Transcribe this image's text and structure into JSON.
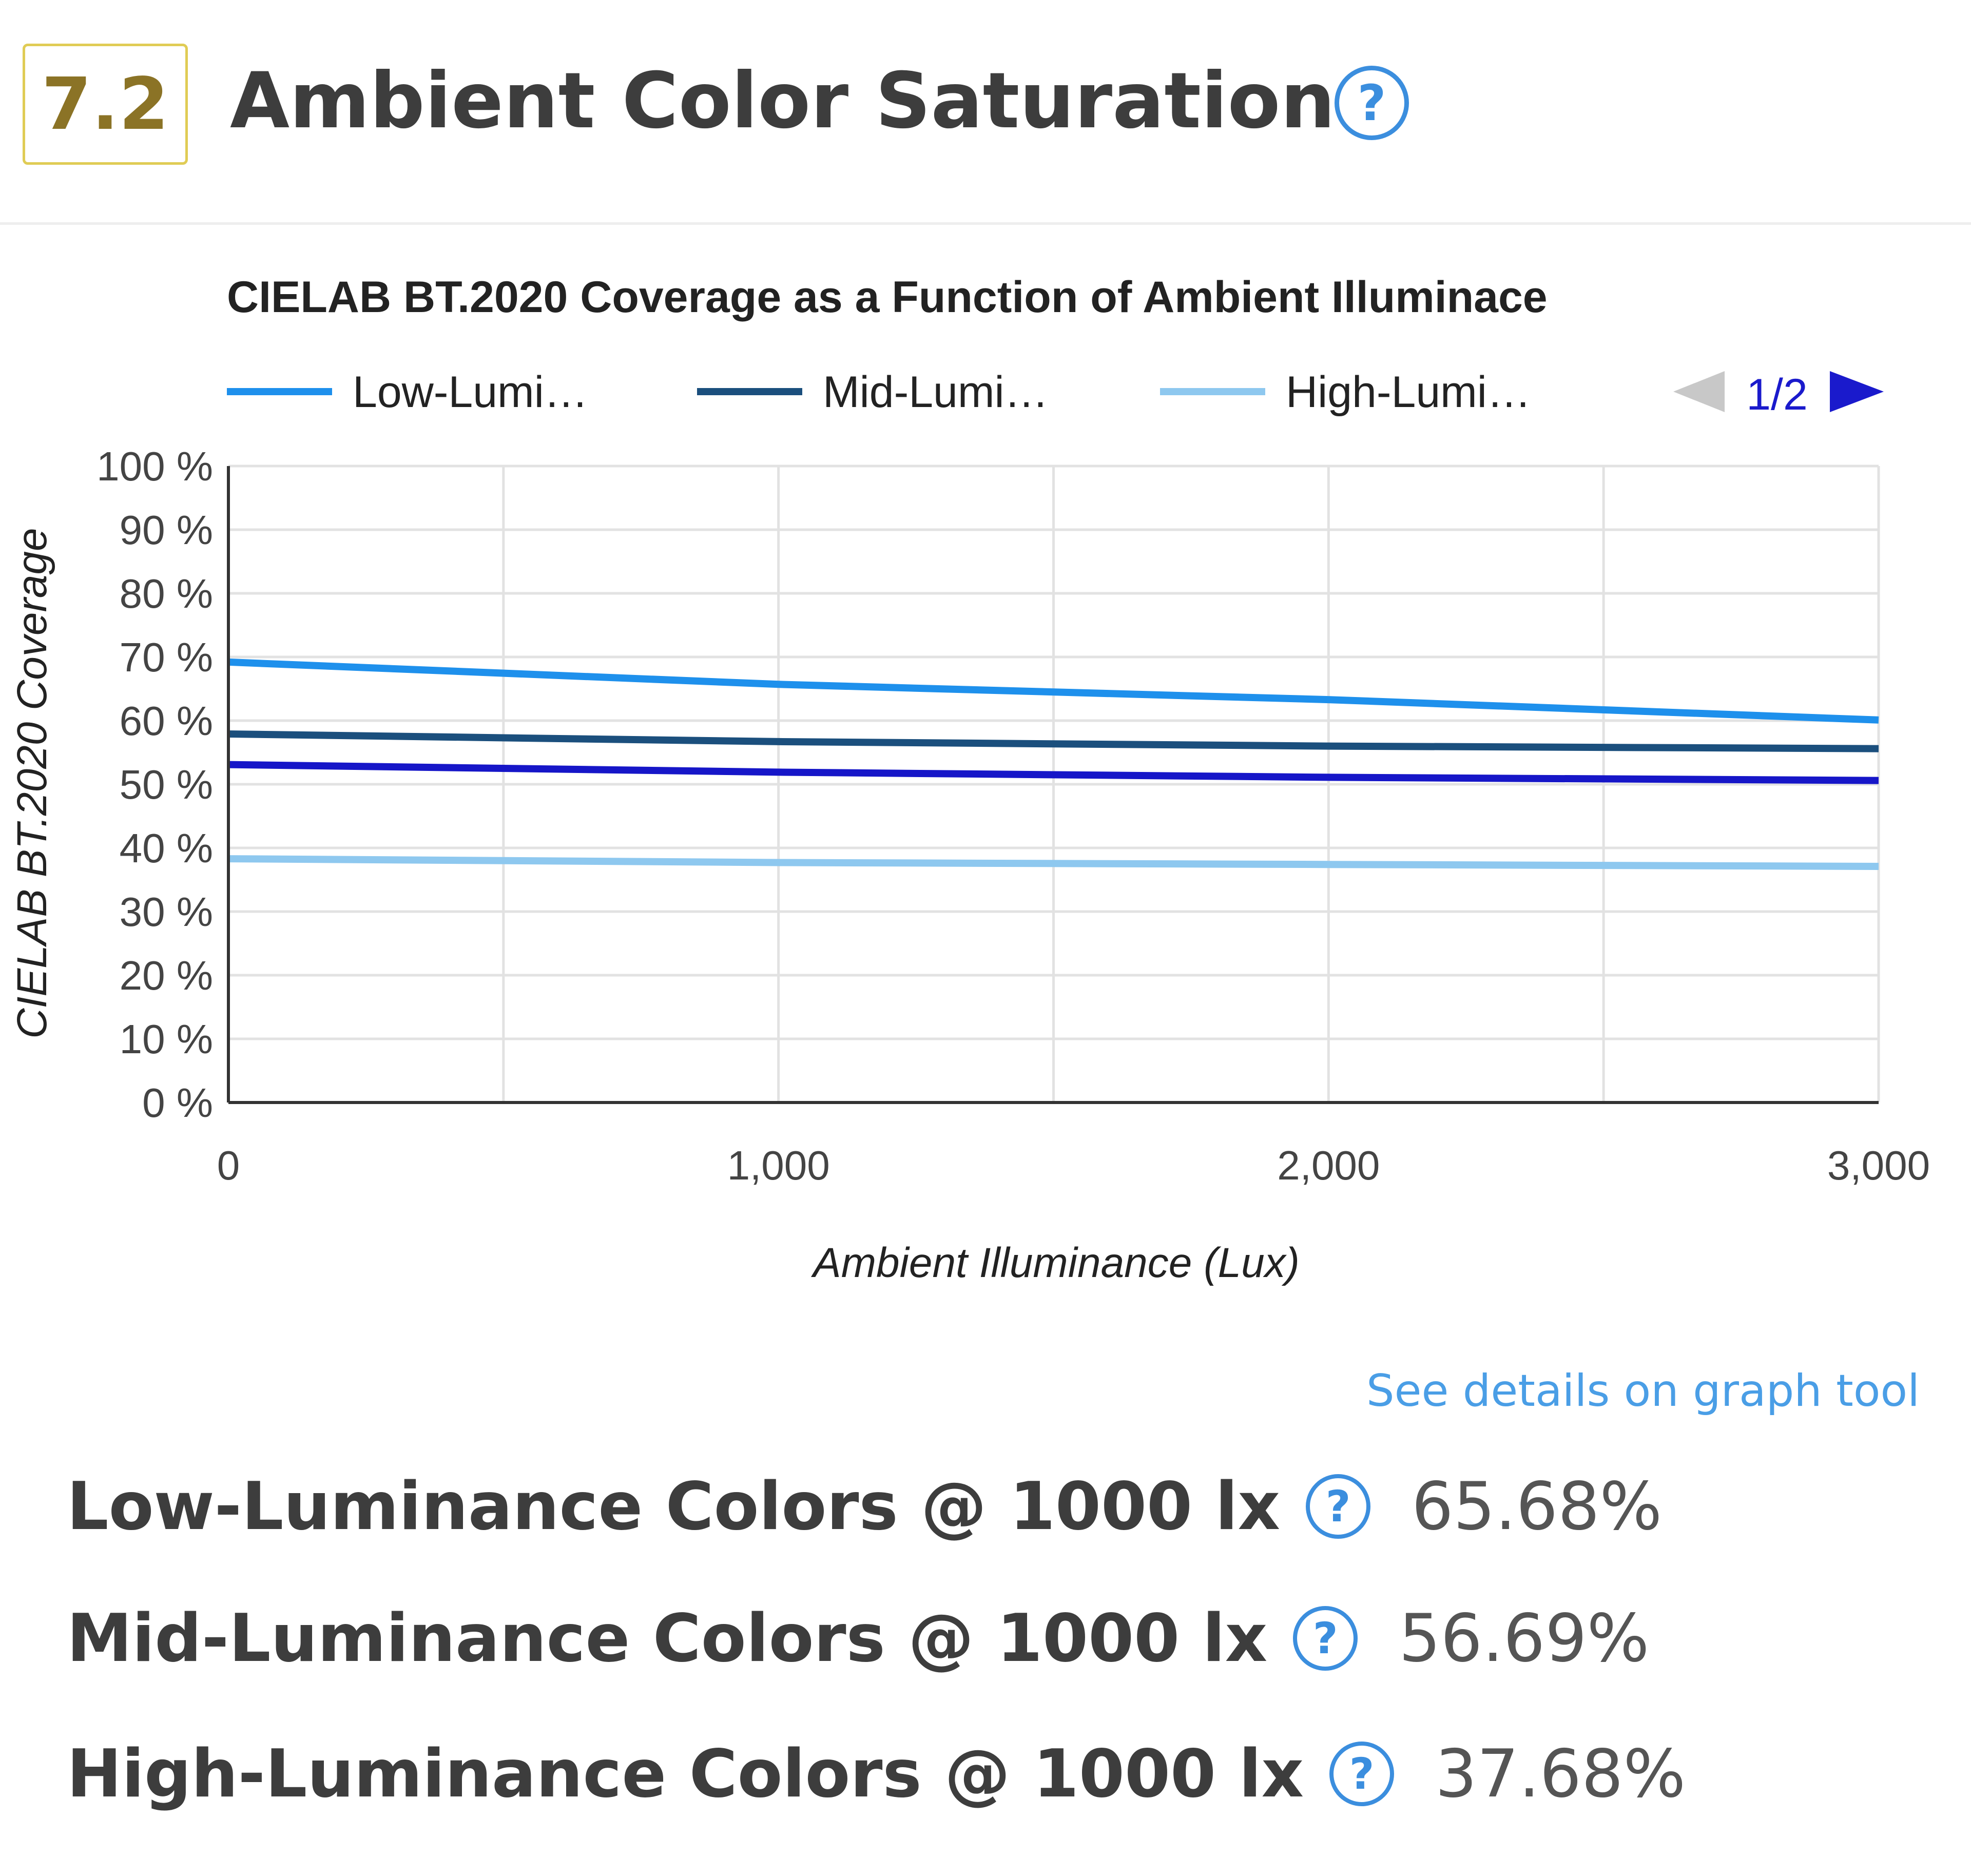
{
  "header": {
    "score": "7.2",
    "title": "Ambient Color Saturation"
  },
  "chart_data": {
    "type": "line",
    "title": "CIELAB BT.2020 Coverage as a Function of Ambient Illuminace",
    "xlabel": "Ambient Illuminance (Lux)",
    "ylabel": "CIELAB BT.2020 Coverage",
    "xlim": [
      0,
      3000
    ],
    "ylim": [
      0,
      100
    ],
    "x_ticks": [
      "0",
      "1,000",
      "2,000",
      "3,000"
    ],
    "y_ticks": [
      "0 %",
      "10 %",
      "20 %",
      "30 %",
      "40 %",
      "50 %",
      "60 %",
      "70 %",
      "80 %",
      "90 %",
      "100 %"
    ],
    "grid": true,
    "legend_position": "top",
    "legend_pager": "1/2",
    "series": [
      {
        "name": "Low-Lumi…",
        "color": "#1e90ec",
        "x": [
          0,
          1000,
          2000,
          3000
        ],
        "values": [
          69.2,
          65.7,
          63.3,
          60.1
        ]
      },
      {
        "name": "Mid-Lumi…",
        "color": "#1b4f7d",
        "x": [
          0,
          1000,
          2000,
          3000
        ],
        "values": [
          57.9,
          56.7,
          56.0,
          55.6
        ]
      },
      {
        "name": "High-Lumi…",
        "color": "#8ec8ef",
        "x": [
          0,
          1000,
          2000,
          3000
        ],
        "values": [
          38.3,
          37.7,
          37.4,
          37.1
        ]
      },
      {
        "name": "",
        "color": "#1616c8",
        "x": [
          0,
          1000,
          2000,
          3000
        ],
        "values": [
          53.1,
          51.9,
          51.1,
          50.6
        ]
      }
    ]
  },
  "link": {
    "text": "See details on graph tool"
  },
  "metrics": [
    {
      "label": "Low-Luminance Colors @ 1000 lx",
      "value": "65.68%"
    },
    {
      "label": "Mid-Luminance Colors @ 1000 lx",
      "value": "56.69%"
    },
    {
      "label": "High-Luminance Colors @ 1000 lx",
      "value": "37.68%"
    }
  ]
}
